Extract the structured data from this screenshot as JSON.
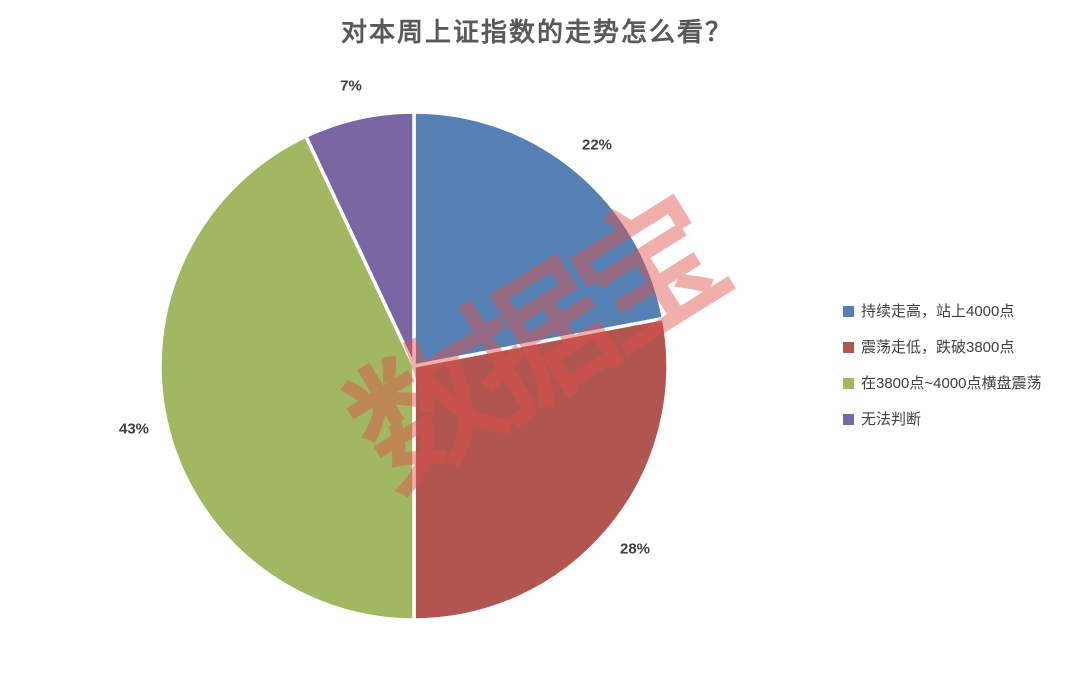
{
  "page": {
    "background": "#FFFFFF"
  },
  "chart_data": {
    "type": "pie",
    "title": "对本周上证指数的走势怎么看？",
    "unit": "%",
    "start_angle_deg": 0,
    "direction": "clockwise",
    "legend_position": "right",
    "slice_border_color": "#FFFFFF",
    "slices": [
      {
        "label": "持续走高，站上4000点",
        "value": 22,
        "data_label": "22%",
        "color": "#5580B4"
      },
      {
        "label": "震荡走低，跌破3800点",
        "value": 28,
        "data_label": "28%",
        "color": "#B15550"
      },
      {
        "label": "在3800点~4000点横盘震荡",
        "value": 43,
        "data_label": "43%",
        "color": "#A1B862"
      },
      {
        "label": "无法判断",
        "value": 7,
        "data_label": "7%",
        "color": "#7966A2"
      }
    ]
  },
  "watermark": {
    "text": "数据宝",
    "color": "#E25048",
    "opacity": 0.45
  },
  "text_colors": {
    "title": "#595959",
    "data_labels": "#404040",
    "legend": "#404040"
  }
}
